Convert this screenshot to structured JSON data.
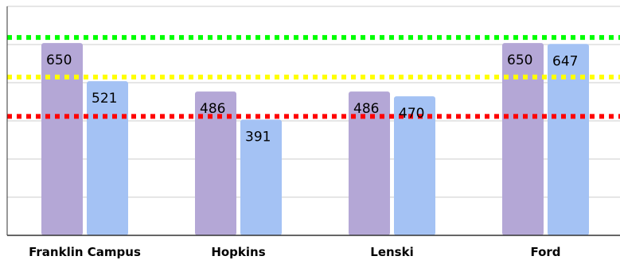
{
  "chart_data": {
    "type": "bar",
    "title": "",
    "xlabel": "",
    "ylabel": "",
    "categories": [
      "Franklin Campus",
      "Hopkins",
      "Lenski",
      "Ford"
    ],
    "series": [
      {
        "values": [
          650,
          486,
          486,
          650
        ],
        "color": "#b4a7d6"
      },
      {
        "values": [
          521,
          391,
          470,
          647
        ],
        "color": "#a4c2f4"
      }
    ],
    "ylim": [
      0,
      774
    ],
    "gridlines": [
      129,
      258,
      387,
      516,
      645
    ],
    "grid": true,
    "reference_lines": [
      {
        "value": 669,
        "color": "#00ff00",
        "style": "dotted"
      },
      {
        "value": 535,
        "color": "#ffff00",
        "style": "dotted"
      },
      {
        "value": 402,
        "color": "#ff0000",
        "style": "dotted"
      }
    ],
    "legend": "none"
  }
}
